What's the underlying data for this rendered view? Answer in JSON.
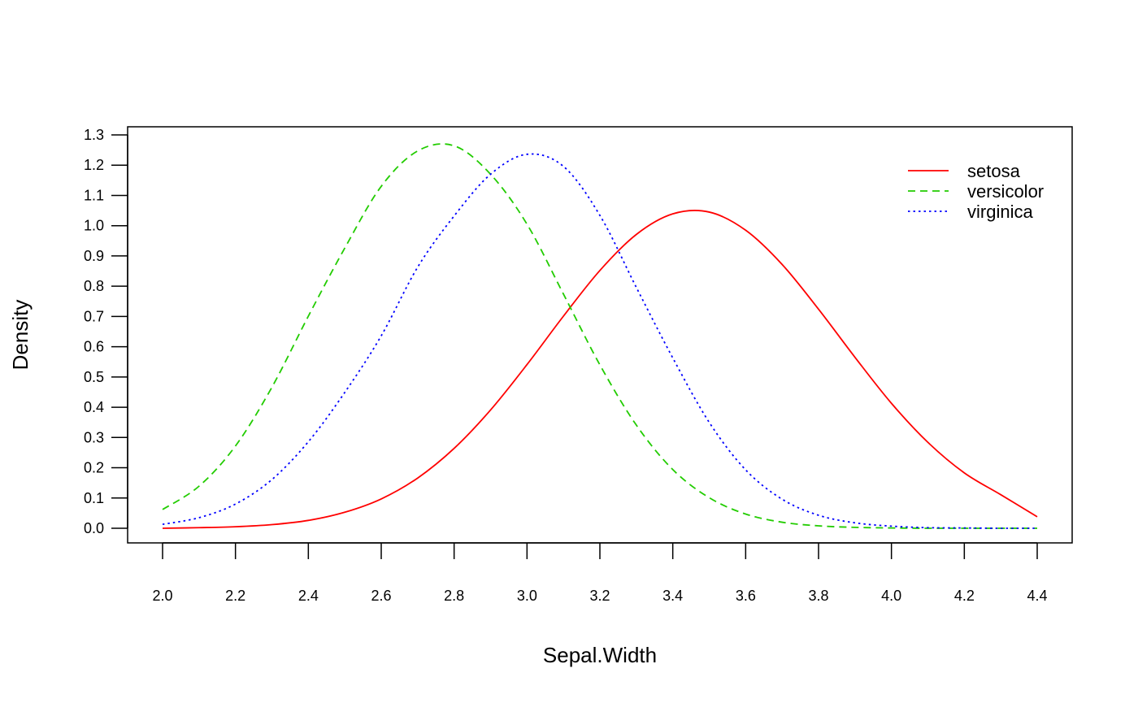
{
  "chart_data": {
    "type": "line",
    "title": "",
    "xlabel": "Sepal.Width",
    "ylabel": "Density",
    "xlim": [
      2.0,
      4.4
    ],
    "ylim": [
      0.0,
      1.3
    ],
    "xticks": [
      "2.0",
      "2.2",
      "2.4",
      "2.6",
      "2.8",
      "3.0",
      "3.2",
      "3.4",
      "3.6",
      "3.8",
      "4.0",
      "4.2",
      "4.4"
    ],
    "yticks": [
      "0.0",
      "0.1",
      "0.2",
      "0.3",
      "0.4",
      "0.5",
      "0.6",
      "0.7",
      "0.8",
      "0.9",
      "1.0",
      "1.1",
      "1.2",
      "1.3"
    ],
    "grid": false,
    "legend": "top-right",
    "x": [
      2.0,
      2.1,
      2.2,
      2.3,
      2.4,
      2.5,
      2.6,
      2.7,
      2.8,
      2.9,
      3.0,
      3.1,
      3.2,
      3.3,
      3.4,
      3.5,
      3.6,
      3.7,
      3.8,
      3.9,
      4.0,
      4.1,
      4.2,
      4.3,
      4.4
    ],
    "series": [
      {
        "name": "setosa",
        "color": "#ff0000",
        "dash": "solid",
        "values": [
          0.0,
          0.002,
          0.005,
          0.012,
          0.026,
          0.053,
          0.097,
          0.166,
          0.264,
          0.391,
          0.541,
          0.701,
          0.852,
          0.971,
          1.039,
          1.045,
          0.985,
          0.872,
          0.724,
          0.565,
          0.413,
          0.284,
          0.183,
          0.111,
          0.038
        ]
      },
      {
        "name": "versicolor",
        "color": "#22cc00",
        "dash": "dashed",
        "values": [
          0.062,
          0.139,
          0.272,
          0.466,
          0.701,
          0.926,
          1.13,
          1.247,
          1.264,
          1.17,
          1.005,
          0.774,
          0.54,
          0.341,
          0.194,
          0.101,
          0.047,
          0.02,
          0.008,
          0.003,
          0.001,
          0.0,
          0.0,
          0.0,
          0.0
        ]
      },
      {
        "name": "virginica",
        "color": "#0000ff",
        "dash": "dotted",
        "values": [
          0.013,
          0.035,
          0.08,
          0.161,
          0.286,
          0.449,
          0.636,
          0.863,
          1.032,
          1.17,
          1.236,
          1.196,
          1.034,
          0.796,
          0.563,
          0.35,
          0.193,
          0.096,
          0.043,
          0.018,
          0.007,
          0.002,
          0.001,
          0.0,
          0.0
        ]
      }
    ]
  }
}
